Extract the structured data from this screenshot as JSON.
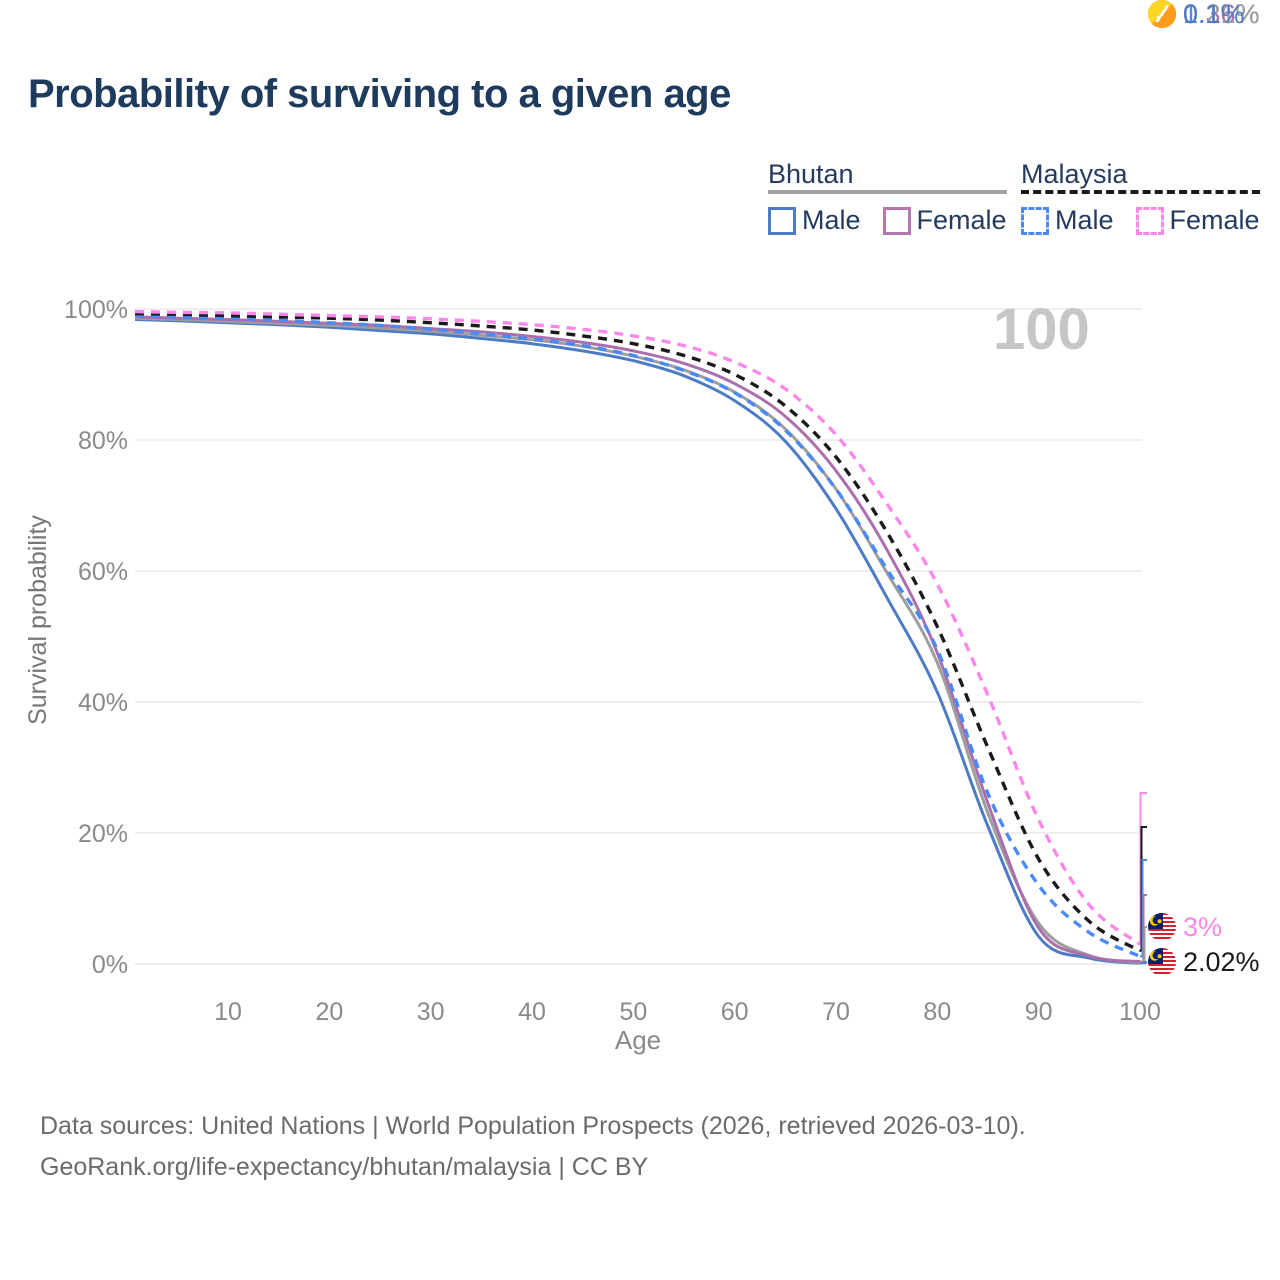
{
  "title": "Probability of surviving to a given age",
  "watermark": "100",
  "legend": {
    "groups": [
      {
        "label": "Bhutan",
        "line_style": "solid",
        "underline_color": "#a3a3a3",
        "items": [
          {
            "label": "Male",
            "color": "#4d7cc4"
          },
          {
            "label": "Female",
            "color": "#b377b0"
          }
        ]
      },
      {
        "label": "Malaysia",
        "line_style": "dashed",
        "underline_color": "#1a1a1a",
        "items": [
          {
            "label": "Male",
            "color": "#4a8af4"
          },
          {
            "label": "Female",
            "color": "#fb87e9"
          }
        ]
      }
    ]
  },
  "chart_data": {
    "type": "line",
    "title": "Probability of surviving to a given age",
    "xlabel": "Age",
    "ylabel": "Survival probability",
    "xlim": [
      0,
      100
    ],
    "ylim": [
      0,
      100
    ],
    "grid": "horizontal",
    "legend_position": "top-right",
    "x_ticks": [
      10,
      20,
      30,
      40,
      50,
      60,
      70,
      80,
      90,
      100
    ],
    "y_ticks": [
      "0%",
      "20%",
      "40%",
      "60%",
      "80%",
      "100%"
    ],
    "x": [
      0,
      5,
      10,
      15,
      20,
      25,
      30,
      35,
      40,
      45,
      50,
      55,
      60,
      65,
      70,
      75,
      80,
      85,
      90,
      95,
      100
    ],
    "series": [
      {
        "name": "Bhutan Male",
        "country": "Bhutan",
        "sex": "male",
        "color": "#4d7cc4",
        "dash": false,
        "end_label": "0.1%",
        "values": [
          98.4,
          98.2,
          97.9,
          97.6,
          97.2,
          96.7,
          96.2,
          95.5,
          94.7,
          93.6,
          92.1,
          89.8,
          86.0,
          79.8,
          69.5,
          56.0,
          41.5,
          21.0,
          4.2,
          0.9,
          0.1
        ]
      },
      {
        "name": "Bhutan Total",
        "country": "Bhutan",
        "sex": "total",
        "color": "#9e9e9e",
        "dash": false,
        "end_label": "0.21%",
        "values": [
          98.6,
          98.4,
          98.1,
          97.8,
          97.5,
          97.1,
          96.6,
          96.0,
          95.3,
          94.3,
          92.8,
          90.7,
          87.3,
          81.7,
          72.5,
          59.8,
          46.0,
          23.0,
          6.2,
          1.3,
          0.21
        ]
      },
      {
        "name": "Bhutan Female",
        "country": "Bhutan",
        "sex": "female",
        "color": "#ab6fae",
        "dash": false,
        "end_label": "0.36%",
        "values": [
          98.8,
          98.6,
          98.4,
          98.1,
          97.8,
          97.5,
          97.0,
          96.5,
          95.8,
          94.9,
          93.6,
          91.7,
          88.6,
          83.6,
          75.3,
          63.3,
          47.5,
          24.5,
          5.5,
          1.2,
          0.36
        ]
      },
      {
        "name": "Malaysia Male",
        "country": "Malaysia",
        "sex": "male",
        "color": "#4a8af4",
        "dash": true,
        "end_label": "1.16%",
        "values": [
          99.0,
          98.8,
          98.6,
          98.3,
          97.9,
          97.5,
          96.9,
          96.2,
          95.4,
          94.4,
          92.9,
          90.6,
          87.2,
          81.5,
          72.5,
          60.3,
          48.0,
          26.0,
          12.0,
          4.8,
          1.16
        ]
      },
      {
        "name": "Malaysia Total",
        "country": "Malaysia",
        "sex": "total",
        "color": "#1a1a1a",
        "dash": true,
        "end_label": "2.02%",
        "values": [
          99.3,
          99.2,
          99.0,
          98.8,
          98.6,
          98.3,
          97.9,
          97.4,
          96.8,
          95.9,
          94.7,
          92.9,
          90.0,
          85.2,
          77.4,
          66.0,
          51.5,
          33.0,
          16.0,
          6.5,
          2.02
        ]
      },
      {
        "name": "Malaysia Female",
        "country": "Malaysia",
        "sex": "female",
        "color": "#fb87e9",
        "dash": true,
        "end_label": "3%",
        "values": [
          99.6,
          99.5,
          99.4,
          99.2,
          99.0,
          98.8,
          98.5,
          98.1,
          97.6,
          96.9,
          95.9,
          94.4,
          91.9,
          87.8,
          80.8,
          70.3,
          58.0,
          41.0,
          22.0,
          9.0,
          3.0
        ]
      }
    ],
    "age_marker": "100"
  },
  "endpoint_labels": [
    {
      "series": "Malaysia Female",
      "value": "3%",
      "color": "#fb87e9",
      "flag": "malaysia-flag-icon"
    },
    {
      "series": "Malaysia Total",
      "value": "2.02%",
      "color": "#1a1a1a",
      "flag": "malaysia-flag-icon"
    },
    {
      "series": "Malaysia Male",
      "value": "1.16%",
      "color": "#4a8af4",
      "flag": "malaysia-flag-icon"
    },
    {
      "series": "Bhutan Female",
      "value": "0.36%",
      "color": "#ab6fae",
      "flag": "bhutan-flag-icon"
    },
    {
      "series": "Bhutan Total",
      "value": "0.21%",
      "color": "#9e9e9e",
      "flag": "bhutan-flag-icon"
    },
    {
      "series": "Bhutan Male",
      "value": "0.1%",
      "color": "#4d7cc4",
      "flag": "bhutan-flag-icon"
    }
  ],
  "footer": {
    "line1": "Data sources: United Nations | World Population Prospects (2026, retrieved 2026-03-10).",
    "line2": "GeoRank.org/life-expectancy/bhutan/malaysia | CC BY"
  }
}
